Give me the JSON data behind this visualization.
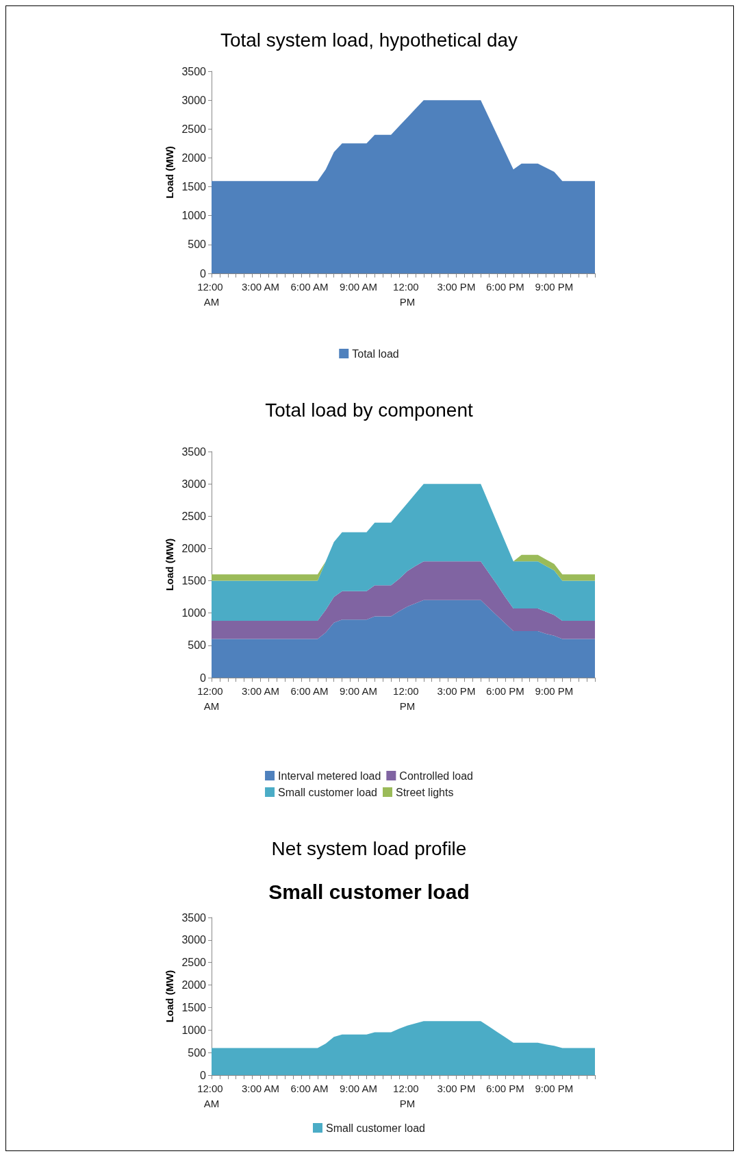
{
  "chart_data": [
    {
      "type": "area",
      "title": "Total system load, hypothetical day",
      "ylabel": "Load (MW)",
      "categories": [
        "12:00 AM",
        null,
        null,
        null,
        null,
        null,
        "3:00 AM",
        null,
        null,
        null,
        null,
        null,
        "6:00 AM",
        null,
        null,
        null,
        null,
        null,
        "9:00 AM",
        null,
        null,
        null,
        null,
        null,
        "12:00 PM",
        null,
        null,
        null,
        null,
        null,
        "3:00 PM",
        null,
        null,
        null,
        null,
        null,
        "6:00 PM",
        null,
        null,
        null,
        null,
        null,
        "9:00 PM",
        null,
        null,
        null,
        null,
        null
      ],
      "series": [
        {
          "name": "Total load",
          "color": "#4f81bd",
          "values": [
            1600,
            1600,
            1600,
            1600,
            1600,
            1600,
            1600,
            1600,
            1600,
            1600,
            1600,
            1600,
            1600,
            1600,
            1800,
            2100,
            2250,
            2250,
            2250,
            2250,
            2400,
            2400,
            2400,
            2550,
            2700,
            2850,
            3000,
            3000,
            3000,
            3000,
            3000,
            3000,
            3000,
            3000,
            2700,
            2400,
            2100,
            1800,
            1900,
            1900,
            1900,
            1830,
            1760,
            1600,
            1600,
            1600,
            1600,
            1600
          ]
        }
      ],
      "ylim": [
        0,
        3500
      ],
      "yticks": [
        0,
        500,
        1000,
        1500,
        2000,
        2500,
        3000,
        3500
      ],
      "grid": false,
      "legend": "bottom"
    },
    {
      "type": "area",
      "stacked": true,
      "title": "Total load by component",
      "ylabel": "Load (MW)",
      "categories": [
        "12:00 AM",
        null,
        null,
        null,
        null,
        null,
        "3:00 AM",
        null,
        null,
        null,
        null,
        null,
        "6:00 AM",
        null,
        null,
        null,
        null,
        null,
        "9:00 AM",
        null,
        null,
        null,
        null,
        null,
        "12:00 PM",
        null,
        null,
        null,
        null,
        null,
        "3:00 PM",
        null,
        null,
        null,
        null,
        null,
        "6:00 PM",
        null,
        null,
        null,
        null,
        null,
        "9:00 PM",
        null,
        null,
        null,
        null,
        null
      ],
      "series": [
        {
          "name": "Interval metered load",
          "color": "#4f81bd",
          "values": [
            600,
            600,
            600,
            600,
            600,
            600,
            600,
            600,
            600,
            600,
            600,
            600,
            600,
            600,
            700,
            850,
            900,
            900,
            900,
            900,
            950,
            950,
            950,
            1030,
            1100,
            1150,
            1200,
            1200,
            1200,
            1200,
            1200,
            1200,
            1200,
            1200,
            1080,
            960,
            840,
            720,
            720,
            720,
            720,
            680,
            650,
            600,
            600,
            600,
            600,
            600
          ]
        },
        {
          "name": "Controlled load",
          "color": "#8064a2",
          "values": [
            280,
            280,
            280,
            280,
            280,
            280,
            280,
            280,
            280,
            280,
            280,
            280,
            280,
            280,
            350,
            400,
            440,
            440,
            440,
            440,
            480,
            480,
            480,
            500,
            550,
            580,
            600,
            600,
            600,
            600,
            600,
            600,
            600,
            600,
            540,
            480,
            410,
            350,
            350,
            350,
            350,
            340,
            320,
            280,
            280,
            280,
            280,
            280
          ]
        },
        {
          "name": "Small customer load",
          "color": "#4bacc6",
          "values": [
            620,
            620,
            620,
            620,
            620,
            620,
            620,
            620,
            620,
            620,
            620,
            620,
            620,
            620,
            750,
            850,
            910,
            910,
            910,
            910,
            970,
            970,
            970,
            1020,
            1050,
            1120,
            1200,
            1200,
            1200,
            1200,
            1200,
            1200,
            1200,
            1200,
            1080,
            960,
            850,
            730,
            730,
            730,
            730,
            710,
            690,
            620,
            620,
            620,
            620,
            620
          ]
        },
        {
          "name": "Street lights",
          "color": "#9bbb59",
          "values": [
            100,
            100,
            100,
            100,
            100,
            100,
            100,
            100,
            100,
            100,
            100,
            100,
            100,
            100,
            0,
            0,
            0,
            0,
            0,
            0,
            0,
            0,
            0,
            0,
            0,
            0,
            0,
            0,
            0,
            0,
            0,
            0,
            0,
            0,
            0,
            0,
            0,
            0,
            100,
            100,
            100,
            100,
            100,
            100,
            100,
            100,
            100,
            100
          ]
        }
      ],
      "ylim": [
        0,
        3500
      ],
      "yticks": [
        0,
        500,
        1000,
        1500,
        2000,
        2500,
        3000,
        3500
      ],
      "grid": false,
      "legend": "bottom"
    },
    {
      "type": "area",
      "title": "Net system load profile",
      "subtitle": "Small customer load",
      "ylabel": "Load (MW)",
      "categories": [
        "12:00 AM",
        null,
        null,
        null,
        null,
        null,
        "3:00 AM",
        null,
        null,
        null,
        null,
        null,
        "6:00 AM",
        null,
        null,
        null,
        null,
        null,
        "9:00 AM",
        null,
        null,
        null,
        null,
        null,
        "12:00 PM",
        null,
        null,
        null,
        null,
        null,
        "3:00 PM",
        null,
        null,
        null,
        null,
        null,
        "6:00 PM",
        null,
        null,
        null,
        null,
        null,
        "9:00 PM",
        null,
        null,
        null,
        null,
        null
      ],
      "series": [
        {
          "name": "Small customer load",
          "color": "#4bacc6",
          "values": [
            600,
            600,
            600,
            600,
            600,
            600,
            600,
            600,
            600,
            600,
            600,
            600,
            600,
            600,
            700,
            850,
            900,
            900,
            900,
            900,
            950,
            950,
            950,
            1030,
            1100,
            1150,
            1200,
            1200,
            1200,
            1200,
            1200,
            1200,
            1200,
            1200,
            1080,
            960,
            840,
            720,
            720,
            720,
            720,
            680,
            650,
            600,
            600,
            600,
            600,
            600
          ]
        }
      ],
      "ylim": [
        0,
        3500
      ],
      "yticks": [
        0,
        500,
        1000,
        1500,
        2000,
        2500,
        3000,
        3500
      ],
      "grid": false,
      "legend": "bottom"
    }
  ]
}
